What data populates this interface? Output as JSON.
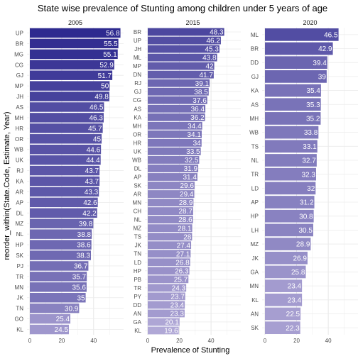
{
  "chart_data": {
    "type": "bar",
    "orientation": "horizontal",
    "title": "State wise prevalence of Stunting among children under 5 years of age",
    "xlabel": "Prevalence of Stunting",
    "ylabel": "reorder_within(State.Code, Estimate, Year)",
    "xlim": [
      0,
      57
    ],
    "x_ticks": [
      0,
      20,
      40
    ],
    "grid": true,
    "color_scale": {
      "low": "#b0a8d6",
      "high": "#2e2a8f"
    },
    "panels": [
      {
        "name": "2005",
        "categories": [
          "UP",
          "BR",
          "MG",
          "CG",
          "GJ",
          "MP",
          "JH",
          "AS",
          "MH",
          "HR",
          "OR",
          "WB",
          "UK",
          "RJ",
          "KA",
          "AR",
          "AP",
          "DL",
          "MZ",
          "NL",
          "HP",
          "SK",
          "PJ",
          "TR",
          "MN",
          "JK",
          "TN",
          "GO",
          "KL"
        ],
        "values": [
          56.8,
          55.5,
          55.1,
          52.9,
          51.7,
          50,
          49.8,
          46.5,
          46.3,
          45.7,
          45,
          44.6,
          44.4,
          43.7,
          43.7,
          43.3,
          42.6,
          42.2,
          39.8,
          38.8,
          38.6,
          38.3,
          36.7,
          35.7,
          35.6,
          35,
          30.9,
          25.4,
          24.5
        ]
      },
      {
        "name": "2015",
        "categories": [
          "BR",
          "UP",
          "JH",
          "ML",
          "MP",
          "DN",
          "RJ",
          "GJ",
          "CG",
          "AS",
          "KA",
          "MH",
          "OR",
          "HR",
          "UK",
          "WB",
          "DL",
          "AP",
          "SK",
          "AR",
          "MN",
          "CH",
          "NL",
          "MZ",
          "TS",
          "JK",
          "TN",
          "LD",
          "HP",
          "PB",
          "TR",
          "PY",
          "DD",
          "AN",
          "GA",
          "KL"
        ],
        "values": [
          48.3,
          46.2,
          45.3,
          43.8,
          42,
          41.7,
          39.1,
          38.5,
          37.6,
          36.4,
          36.2,
          34.4,
          34.1,
          34,
          33.5,
          32.5,
          31.9,
          31.4,
          29.6,
          29.4,
          28.9,
          28.7,
          28.6,
          28.1,
          28,
          27.4,
          27.1,
          26.8,
          26.3,
          25.7,
          24.3,
          23.7,
          23.4,
          23.3,
          20.1,
          19.6
        ]
      },
      {
        "name": "2020",
        "categories": [
          "ML",
          "BR",
          "DD",
          "GJ",
          "KA",
          "AS",
          "MH",
          "WB",
          "TS",
          "NL",
          "TR",
          "LD",
          "AP",
          "HP",
          "LH",
          "MZ",
          "JK",
          "GA",
          "MN",
          "KL",
          "AN",
          "SK"
        ],
        "values": [
          46.5,
          42.9,
          39.4,
          39,
          35.4,
          35.3,
          35.2,
          33.8,
          33.1,
          32.7,
          32.3,
          32,
          31.2,
          30.8,
          30.5,
          28.9,
          26.9,
          25.8,
          23.4,
          23.4,
          22.5,
          22.3
        ]
      }
    ]
  }
}
